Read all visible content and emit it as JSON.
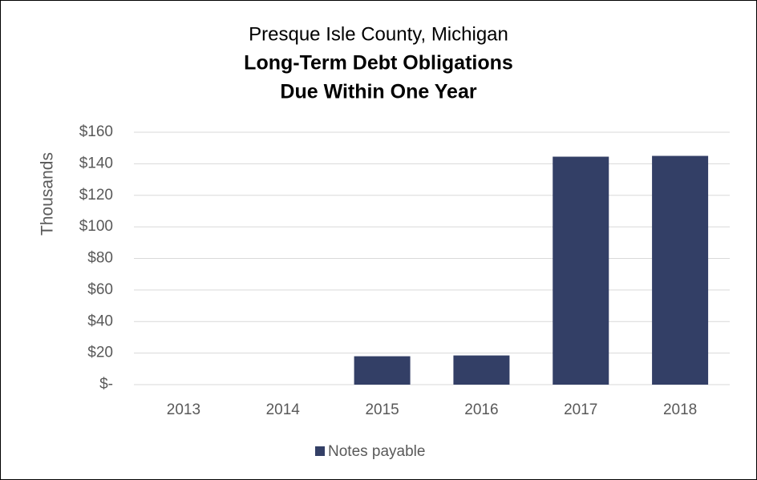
{
  "chart_data": {
    "type": "bar",
    "subtitle": "Presque Isle County, Michigan",
    "title": [
      "Long-Term Debt Obligations",
      "Due Within One Year"
    ],
    "y_label": "Thousands",
    "categories": [
      "2013",
      "2014",
      "2015",
      "2016",
      "2017",
      "2018"
    ],
    "series": [
      {
        "name": "Notes payable",
        "color": "#333f66",
        "values": [
          0,
          0,
          18,
          18.5,
          144.5,
          145
        ]
      }
    ],
    "ylim": [
      0,
      160
    ],
    "yticks": [
      {
        "value": 0,
        "label": "$-"
      },
      {
        "value": 20,
        "label": "$20"
      },
      {
        "value": 40,
        "label": "$40"
      },
      {
        "value": 60,
        "label": "$60"
      },
      {
        "value": 80,
        "label": "$80"
      },
      {
        "value": 100,
        "label": "$100"
      },
      {
        "value": 120,
        "label": "$120"
      },
      {
        "value": 140,
        "label": "$140"
      },
      {
        "value": 160,
        "label": "$160"
      }
    ],
    "grid": true,
    "legend": "bottom"
  }
}
